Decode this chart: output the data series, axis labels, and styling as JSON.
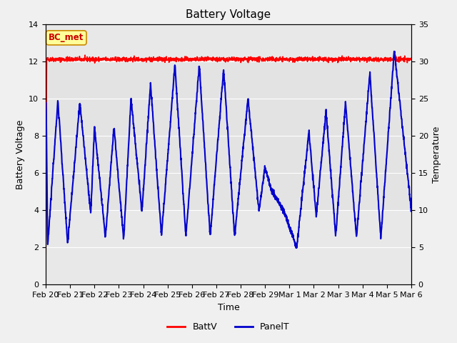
{
  "title": "Battery Voltage",
  "xlabel": "Time",
  "ylabel_left": "Battery Voltage",
  "ylabel_right": "Temperature",
  "ylim_left": [
    0,
    14
  ],
  "ylim_right": [
    0,
    35
  ],
  "yticks_left": [
    0,
    2,
    4,
    6,
    8,
    10,
    12,
    14
  ],
  "yticks_right": [
    0,
    5,
    10,
    15,
    20,
    25,
    30,
    35
  ],
  "fig_bg_color": "#f0f0f0",
  "plot_bg_color": "#e8e8e8",
  "band_color": "#dcdcdc",
  "annotation_text": "BC_met",
  "annotation_bg": "#ffff99",
  "annotation_border": "#cc8800",
  "battv_color": "#ff0000",
  "panelt_color": "#0000cc",
  "legend_battv": "BattV",
  "legend_panelt": "PanelT",
  "x_tick_labels": [
    "Feb 20",
    "Feb 21",
    "Feb 22",
    "Feb 23",
    "Feb 24",
    "Feb 25",
    "Feb 26",
    "Feb 27",
    "Feb 28",
    "Feb 29",
    "Mar 1",
    "Mar 2",
    "Mar 3",
    "Mar 4",
    "Mar 5",
    "Mar 6"
  ],
  "panelt_peaks": [
    9.7,
    2.1,
    9.9,
    2.2,
    9.8,
    3.8,
    8.5,
    2.5,
    8.5,
    2.4,
    10.0,
    3.9,
    10.8,
    2.6,
    11.8,
    2.6,
    11.8,
    2.6,
    11.6,
    2.6,
    10.0,
    4.0,
    6.3,
    5.1,
    4.0,
    2.0,
    8.2,
    3.7,
    9.3,
    2.6,
    9.8,
    2.5,
    11.4,
    2.5,
    12.6,
    4.0
  ],
  "panelt_times": [
    0.02,
    0.08,
    0.5,
    0.9,
    1.4,
    1.85,
    2.0,
    2.45,
    2.8,
    3.2,
    3.5,
    3.95,
    4.3,
    4.75,
    5.3,
    5.75,
    6.3,
    6.75,
    7.3,
    7.75,
    8.3,
    8.75,
    9.0,
    9.25,
    9.75,
    10.3,
    10.8,
    11.1,
    11.5,
    11.9,
    12.3,
    12.75,
    13.3,
    13.75,
    14.3,
    15.0
  ]
}
